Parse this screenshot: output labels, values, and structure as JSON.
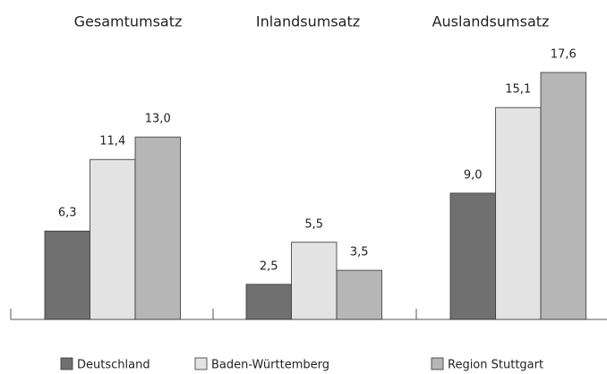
{
  "chart_data": {
    "type": "bar",
    "categories": [
      "Gesamtumsatz",
      "Inlandsumsatz",
      "Auslandsumsatz"
    ],
    "series": [
      {
        "name": "Deutschland",
        "color": "#707070",
        "values": [
          6.3,
          2.5,
          9.0
        ],
        "value_labels": [
          "6,3",
          "2,5",
          "9,0"
        ]
      },
      {
        "name": "Baden-Württemberg",
        "color": "#e3e3e3",
        "values": [
          11.4,
          5.5,
          15.1
        ],
        "value_labels": [
          "11,4",
          "5,5",
          "15,1"
        ]
      },
      {
        "name": "Region Stuttgart",
        "color": "#b6b6b6",
        "values": [
          13.0,
          3.5,
          17.6
        ],
        "value_labels": [
          "13,0",
          "3,5",
          "17,6"
        ]
      }
    ]
  }
}
